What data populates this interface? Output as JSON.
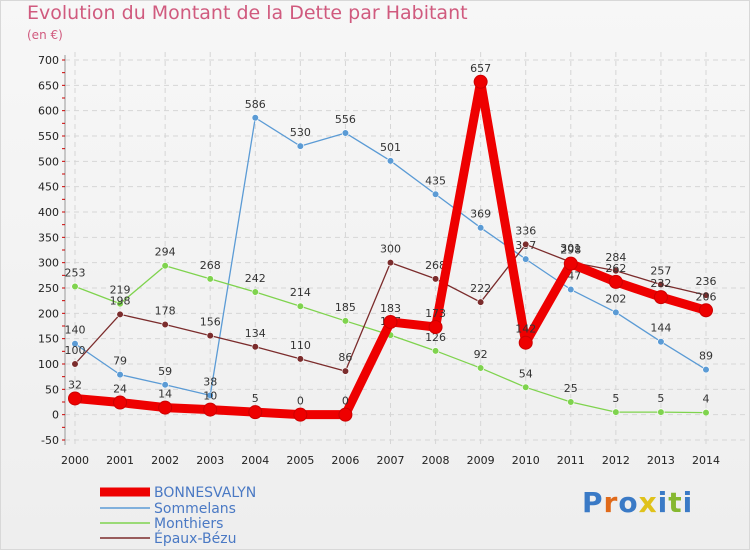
{
  "title": "Evolution du Montant de la Dette par Habitant",
  "unit": "(en €)",
  "logo": {
    "letters": [
      "P",
      "r",
      "o",
      "x",
      "i",
      "t",
      "i"
    ],
    "colors": [
      "#3a7ac6",
      "#e06a1a",
      "#3a7ac6",
      "#e0c21a",
      "#3a7ac6",
      "#86b830",
      "#3a7ac6"
    ]
  },
  "chart_data": {
    "type": "line",
    "x": [
      2000,
      2001,
      2002,
      2003,
      2004,
      2005,
      2006,
      2007,
      2008,
      2009,
      2010,
      2011,
      2012,
      2013,
      2014
    ],
    "ylim": [
      -50,
      700
    ],
    "yticks": [
      -50,
      0,
      50,
      100,
      150,
      200,
      250,
      300,
      350,
      400,
      450,
      500,
      550,
      600,
      650,
      700
    ],
    "grid": true,
    "legend_position": "bottom-left",
    "series": [
      {
        "name": "BONNESVALYN",
        "color": "#ee0000",
        "values": [
          32,
          24,
          14,
          10,
          5,
          0,
          0,
          183,
          173,
          657,
          142,
          298,
          262,
          232,
          206
        ]
      },
      {
        "name": "Sommelans",
        "color": "#5b9bd5",
        "values": [
          140,
          79,
          59,
          38,
          586,
          530,
          556,
          501,
          435,
          369,
          307,
          247,
          202,
          144,
          89
        ]
      },
      {
        "name": "Monthiers",
        "color": "#7fd34e",
        "values": [
          253,
          219,
          294,
          268,
          242,
          214,
          185,
          157,
          126,
          92,
          54,
          25,
          5,
          5,
          4
        ]
      },
      {
        "name": "Épaux-Bézu",
        "color": "#7b2c2c",
        "values": [
          100,
          198,
          178,
          156,
          134,
          110,
          86,
          300,
          268,
          222,
          336,
          301,
          284,
          257,
          236
        ]
      }
    ]
  }
}
